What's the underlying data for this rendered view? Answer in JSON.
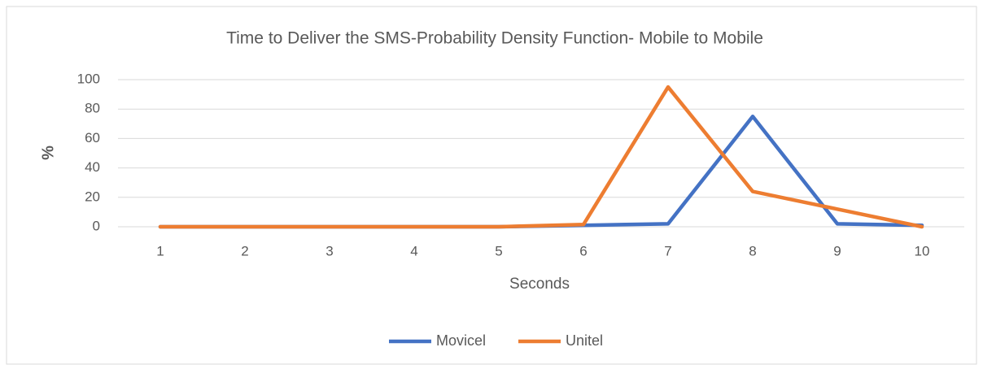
{
  "chart_data": {
    "type": "line",
    "title": "Time to Deliver the SMS-Probability Density Function- Mobile to Mobile",
    "x_label": "Seconds",
    "y_label": "%",
    "categories": [
      "1",
      "2",
      "3",
      "4",
      "5",
      "6",
      "7",
      "8",
      "9",
      "10"
    ],
    "series": [
      {
        "name": "Movicel",
        "color": "#4472c4",
        "values": [
          0,
          0,
          0,
          0,
          0,
          1,
          2,
          75,
          2,
          1
        ]
      },
      {
        "name": "Unitel",
        "color": "#ed7d31",
        "values": [
          0,
          0,
          0,
          0,
          0,
          1.5,
          95,
          24,
          12,
          0
        ]
      }
    ],
    "ylim": [
      0,
      100
    ],
    "yticks": [
      0,
      20,
      40,
      60,
      80,
      100
    ],
    "grid": true,
    "legend": "bottom"
  }
}
